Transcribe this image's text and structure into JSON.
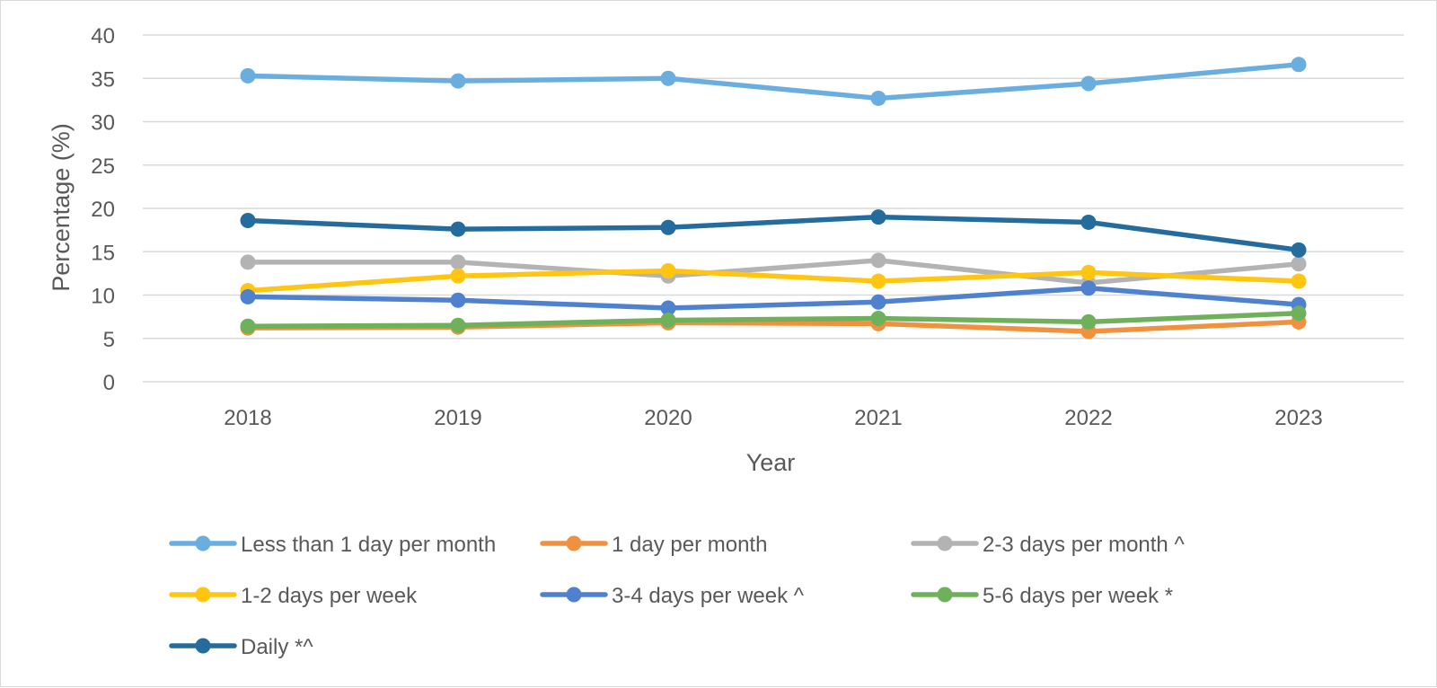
{
  "chart_data": {
    "type": "line",
    "title": "",
    "xlabel": "Year",
    "ylabel": "Percentage (%)",
    "ylim": [
      0,
      40
    ],
    "yticks": [
      "0",
      "5",
      "10",
      "15",
      "20",
      "25",
      "30",
      "35",
      "40"
    ],
    "grid": true,
    "legend_position": "bottom",
    "categories": [
      "2018",
      "2019",
      "2020",
      "2021",
      "2022",
      "2023"
    ],
    "series": [
      {
        "name": "Less than 1 day per month",
        "color": "#6aaee0",
        "values": [
          35.3,
          34.7,
          35.0,
          32.7,
          34.4,
          36.6
        ]
      },
      {
        "name": "1 day per month",
        "color": "#f0913f",
        "values": [
          6.2,
          6.3,
          6.8,
          6.7,
          5.8,
          6.9
        ]
      },
      {
        "name": "2-3 days per month ^",
        "color": "#b3b3b3",
        "values": [
          13.8,
          13.8,
          12.2,
          14.0,
          11.4,
          13.6
        ]
      },
      {
        "name": "1-2 days per week",
        "color": "#ffc511",
        "values": [
          10.5,
          12.2,
          12.8,
          11.6,
          12.6,
          11.6
        ]
      },
      {
        "name": "3-4 days per week ^",
        "color": "#4f81cf",
        "values": [
          9.8,
          9.4,
          8.5,
          9.2,
          10.8,
          8.9
        ]
      },
      {
        "name": "5-6 days per week *",
        "color": "#6fb05a",
        "values": [
          6.4,
          6.5,
          7.1,
          7.3,
          6.9,
          7.9
        ]
      },
      {
        "name": "Daily *^",
        "color": "#246b9e",
        "values": [
          18.6,
          17.6,
          17.8,
          19.0,
          18.4,
          15.2
        ]
      }
    ]
  }
}
